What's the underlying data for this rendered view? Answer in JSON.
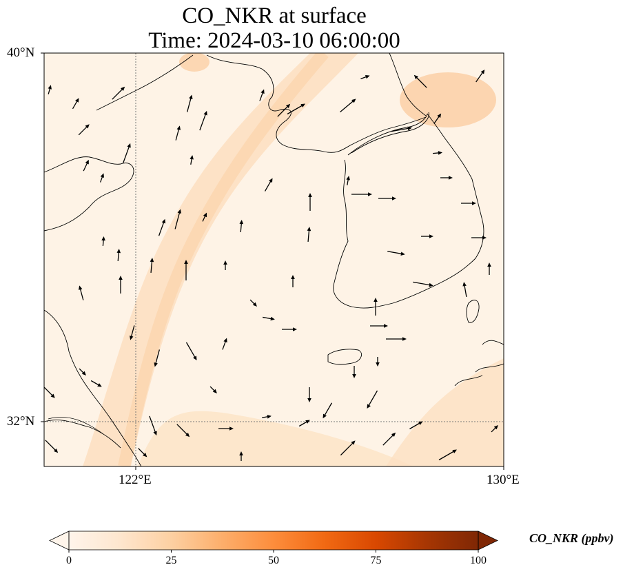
{
  "title": {
    "line1": "CO_NKR at surface",
    "line2": "Time: 2024-03-10 06:00:00"
  },
  "axes": {
    "lat_labels": [
      "40°N",
      "32°N"
    ],
    "lon_labels": [
      "122°E",
      "130°E"
    ],
    "extent": {
      "lon": [
        120,
        130
      ],
      "lat": [
        31,
        40
      ]
    },
    "gridlines": {
      "lon": [
        122
      ],
      "lat": [
        32
      ],
      "style": "dotted"
    }
  },
  "colorbar": {
    "label": "CO_NKR (ppbv)",
    "ticks": [
      "0",
      "25",
      "50",
      "75",
      "100"
    ],
    "range": [
      0,
      100
    ],
    "extend": "both",
    "colormap": [
      "#fff5eb",
      "#fee6ce",
      "#fdd0a2",
      "#fdae6b",
      "#fd8d3c",
      "#f16913",
      "#d94801",
      "#a63603",
      "#7f2704"
    ]
  },
  "colors": {
    "background_field": "#fef3e6",
    "high_band": "#fcd6ad",
    "coastline": "#000000",
    "wind_arrow": "#000000"
  },
  "map_features": [
    "coastline",
    "wind-vectors",
    "co-concentration-field"
  ]
}
